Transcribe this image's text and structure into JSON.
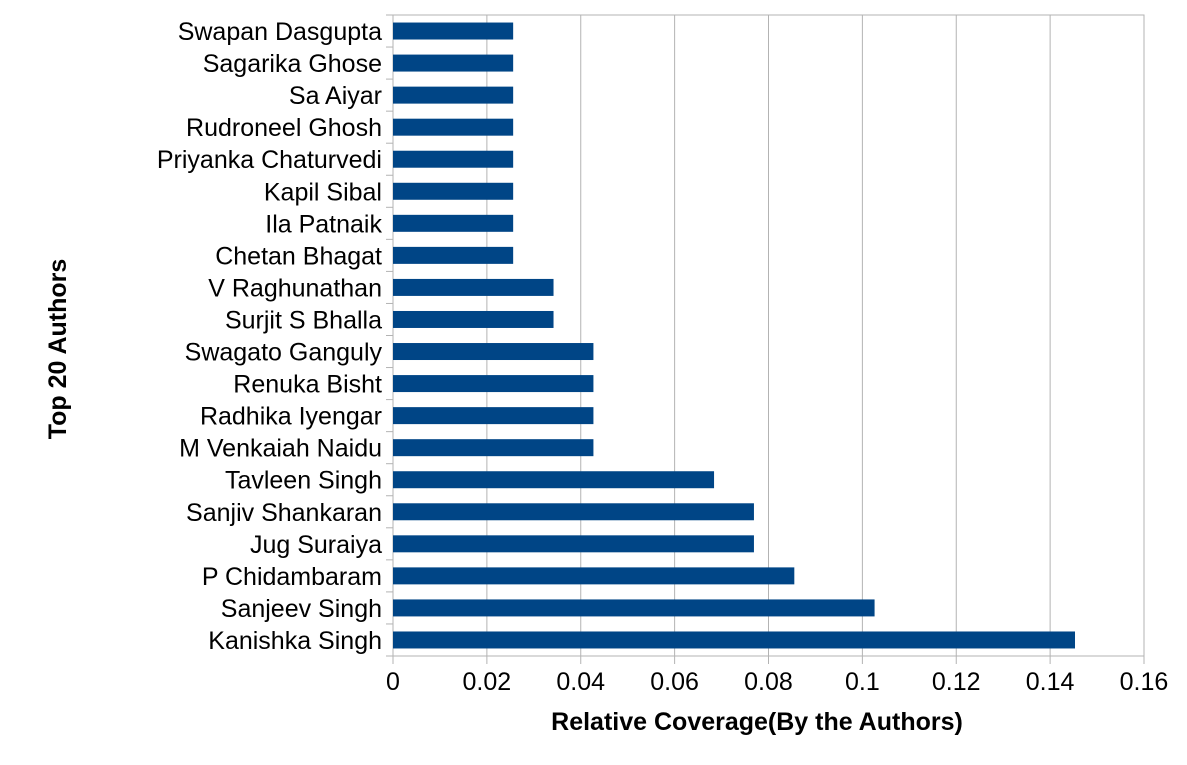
{
  "chart_data": {
    "type": "bar",
    "orientation": "horizontal",
    "categories": [
      "Swapan Dasgupta",
      "Sagarika Ghose",
      "Sa Aiyar",
      "Rudroneel Ghosh",
      "Priyanka Chaturvedi",
      "Kapil Sibal",
      "Ila Patnaik",
      "Chetan Bhagat",
      "V Raghunathan",
      "Surjit S Bhalla",
      "Swagato Ganguly",
      "Renuka Bisht",
      "Radhika Iyengar",
      "M Venkaiah Naidu",
      "Tavleen Singh",
      "Sanjiv Shankaran",
      "Jug Suraiya",
      "P Chidambaram",
      "Sanjeev Singh",
      "Kanishka Singh"
    ],
    "values": [
      0.0256,
      0.0256,
      0.0256,
      0.0256,
      0.0256,
      0.0256,
      0.0256,
      0.0256,
      0.0342,
      0.0342,
      0.0427,
      0.0427,
      0.0427,
      0.0427,
      0.0684,
      0.0769,
      0.0769,
      0.0855,
      0.1026,
      0.1453
    ],
    "xlabel": "Relative Coverage(By the Authors)",
    "ylabel": "Top 20 Authors",
    "xlim": [
      0,
      0.16
    ],
    "xticks": [
      "0",
      "0.02",
      "0.04",
      "0.06",
      "0.08",
      "0.1",
      "0.12",
      "0.14",
      "0.16"
    ],
    "bar_color": "#004586",
    "grid": "vertical",
    "legend": "none"
  }
}
